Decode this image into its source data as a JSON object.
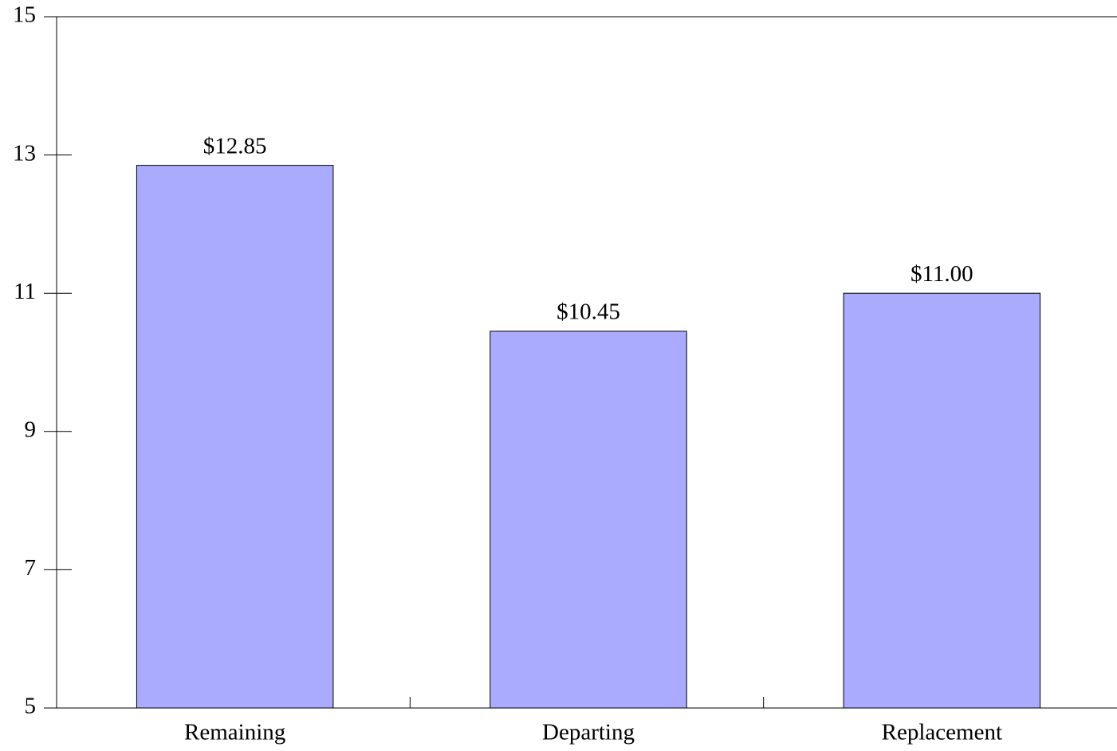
{
  "chart_data": {
    "type": "bar",
    "categories": [
      "Remaining",
      "Departing",
      "Replacement"
    ],
    "values": [
      12.85,
      10.45,
      11.0
    ],
    "value_labels": [
      "$12.85",
      "$10.45",
      "$11.00"
    ],
    "color": "#aaaaff",
    "ylim": [
      5,
      15
    ],
    "yticks": [
      5,
      7,
      9,
      11,
      13,
      15
    ],
    "grid": false
  }
}
